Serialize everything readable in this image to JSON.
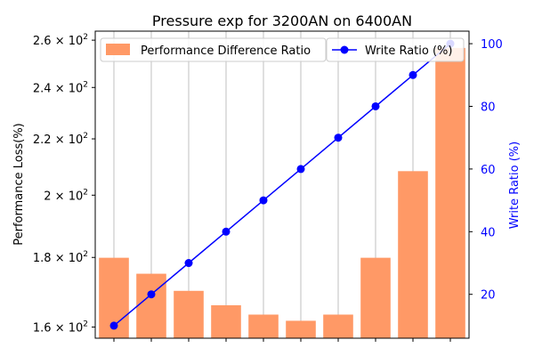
{
  "chart_data": {
    "type": "bar+line",
    "title": "Pressure exp for 3200AN on 6400AN",
    "ylabel_left": "Performance Loss(%)",
    "ylabel_right": "Write Ratio (%)",
    "left_axis_scale": "log",
    "left_ylim": [
      157,
      264
    ],
    "right_ylim": [
      6,
      104
    ],
    "left_ticks": [
      {
        "value": 160,
        "mantissa": "1.6",
        "base": "10",
        "exp": "2"
      },
      {
        "value": 180,
        "mantissa": "1.8",
        "base": "10",
        "exp": "2"
      },
      {
        "value": 200,
        "mantissa": "2",
        "base": "10",
        "exp": "2"
      },
      {
        "value": 220,
        "mantissa": "2.2",
        "base": "10",
        "exp": "2"
      },
      {
        "value": 240,
        "mantissa": "2.4",
        "base": "10",
        "exp": "2"
      },
      {
        "value": 260,
        "mantissa": "2.6",
        "base": "10",
        "exp": "2"
      }
    ],
    "right_ticks": [
      "20",
      "40",
      "60",
      "80",
      "100"
    ],
    "grid": "vertical",
    "legend_placement": "top",
    "bars": {
      "name": "Performance Difference Ratio",
      "color": "#ff9966",
      "values": [
        179.9,
        175.1,
        170.1,
        166.0,
        163.4,
        161.7,
        163.4,
        179.9,
        208.3,
        256.6
      ]
    },
    "line": {
      "name": "Write Ratio (%)",
      "color": "#0000ff",
      "values": [
        10,
        20,
        30,
        40,
        50,
        60,
        70,
        80,
        90,
        100
      ]
    }
  }
}
